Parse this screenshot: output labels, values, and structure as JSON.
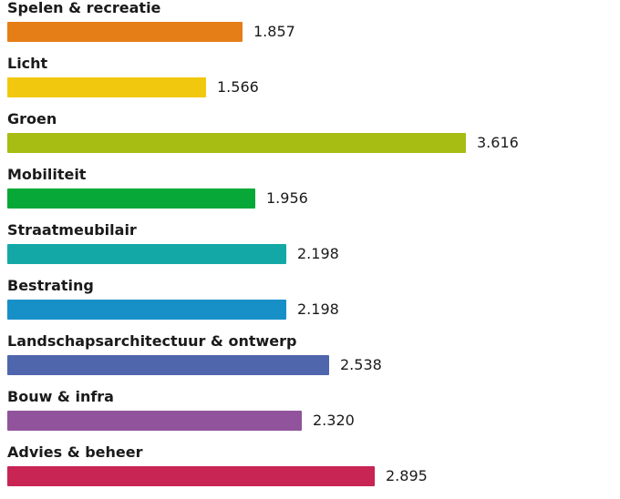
{
  "chart_data": {
    "type": "bar",
    "orientation": "horizontal",
    "categories": [
      "Spelen & recreatie",
      "Licht",
      "Groen",
      "Mobiliteit",
      "Straatmeubilair",
      "Bestrating",
      "Landschapsarchitectuur & ontwerp",
      "Bouw & infra",
      "Advies & beheer"
    ],
    "values": [
      1857,
      1566,
      3616,
      1956,
      2198,
      2198,
      2538,
      2320,
      2895
    ],
    "value_labels": [
      "1.857",
      "1.566",
      "3.616",
      "1.956",
      "2.198",
      "2.198",
      "2.538",
      "2.320",
      "2.895"
    ],
    "colors": [
      "#e67e17",
      "#f2c80f",
      "#a8bd14",
      "#08a838",
      "#13a8a6",
      "#1790c8",
      "#4f66ad",
      "#91539c",
      "#c82454"
    ],
    "xlim": [
      0,
      3616
    ],
    "grid": false,
    "legend": "none"
  }
}
